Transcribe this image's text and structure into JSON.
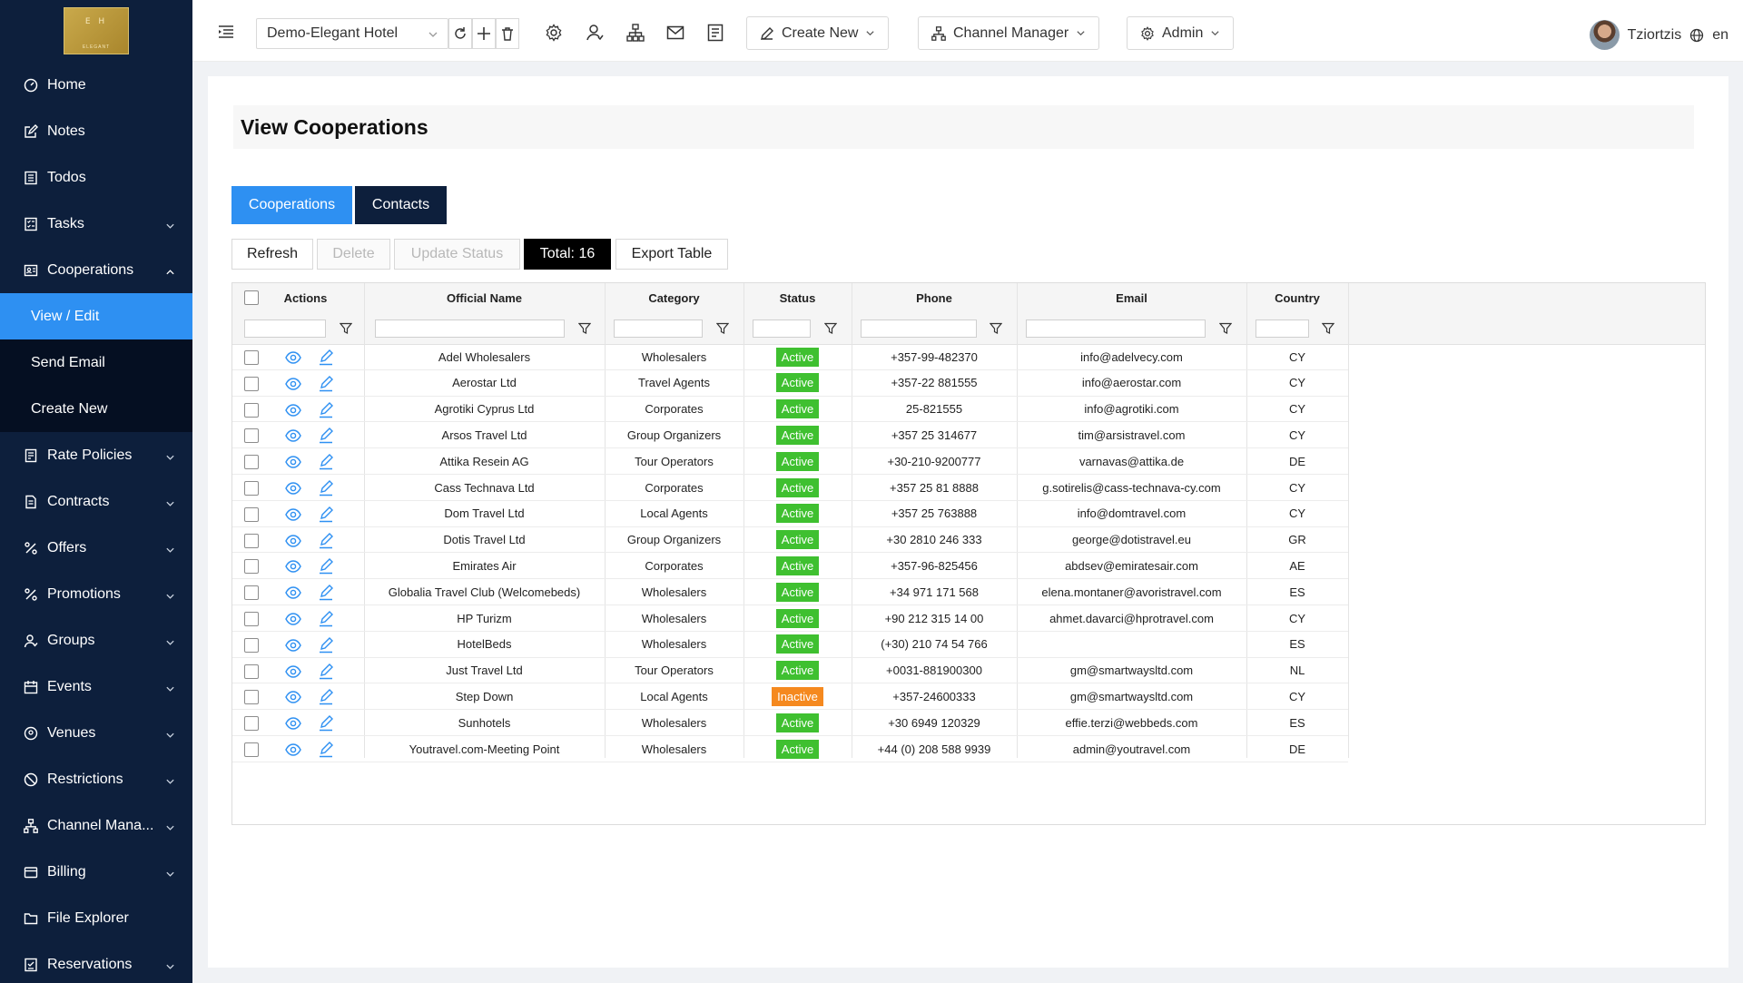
{
  "brand": {
    "logo_text": "E H",
    "logo_sub": "ELEGANT"
  },
  "sidebar": {
    "items": [
      {
        "label": "Home",
        "icon": "dashboard-icon"
      },
      {
        "label": "Notes",
        "icon": "edit-icon"
      },
      {
        "label": "Todos",
        "icon": "list-icon"
      },
      {
        "label": "Tasks",
        "icon": "checklist-icon",
        "expandable": true
      },
      {
        "label": "Cooperations",
        "icon": "handshake-icon",
        "expandable": true,
        "expanded": true
      },
      {
        "label": "Rate Policies",
        "icon": "policy-icon",
        "expandable": true
      },
      {
        "label": "Contracts",
        "icon": "contract-icon",
        "expandable": true
      },
      {
        "label": "Offers",
        "icon": "percent-icon",
        "expandable": true
      },
      {
        "label": "Promotions",
        "icon": "percent-icon",
        "expandable": true
      },
      {
        "label": "Groups",
        "icon": "users-icon",
        "expandable": true
      },
      {
        "label": "Events",
        "icon": "calendar-icon",
        "expandable": true
      },
      {
        "label": "Venues",
        "icon": "location-icon",
        "expandable": true
      },
      {
        "label": "Restrictions",
        "icon": "block-icon",
        "expandable": true
      },
      {
        "label": "Channel Mana...",
        "icon": "network-icon",
        "expandable": true
      },
      {
        "label": "Billing",
        "icon": "wallet-icon",
        "expandable": true
      },
      {
        "label": "File Explorer",
        "icon": "folder-icon"
      },
      {
        "label": "Reservations",
        "icon": "reservation-icon",
        "expandable": true
      }
    ],
    "cooperations_sub": [
      {
        "label": "View / Edit",
        "active": true
      },
      {
        "label": "Send Email"
      },
      {
        "label": "Create New"
      }
    ]
  },
  "topbar": {
    "hotel": "Demo-Elegant Hotel",
    "create_new": "Create New",
    "channel_manager": "Channel Manager",
    "admin": "Admin",
    "user_name": "Tziortzis",
    "language": "en"
  },
  "page": {
    "title": "View Cooperations",
    "tabs": [
      "Cooperations",
      "Contacts"
    ],
    "toolbar": {
      "refresh": "Refresh",
      "delete": "Delete",
      "update_status": "Update Status",
      "total": "Total: 16",
      "export": "Export Table"
    }
  },
  "table": {
    "headers": [
      "Actions",
      "Official Name",
      "Category",
      "Status",
      "Phone",
      "Email",
      "Country"
    ],
    "rows": [
      {
        "name": "Adel Wholesalers",
        "category": "Wholesalers",
        "status": "Active",
        "phone": "+357-99-482370",
        "email": "info@adelvecy.com",
        "country": "CY"
      },
      {
        "name": "Aerostar Ltd",
        "category": "Travel Agents",
        "status": "Active",
        "phone": "+357-22 881555",
        "email": "info@aerostar.com",
        "country": "CY"
      },
      {
        "name": "Agrotiki Cyprus Ltd",
        "category": "Corporates",
        "status": "Active",
        "phone": "25-821555",
        "email": "info@agrotiki.com",
        "country": "CY"
      },
      {
        "name": "Arsos Travel Ltd",
        "category": "Group Organizers",
        "status": "Active",
        "phone": "+357 25 314677",
        "email": "tim@arsistravel.com",
        "country": "CY"
      },
      {
        "name": "Attika Resein AG",
        "category": "Tour Operators",
        "status": "Active",
        "phone": "+30-210-9200777",
        "email": "varnavas@attika.de",
        "country": "DE"
      },
      {
        "name": "Cass Technava Ltd",
        "category": "Corporates",
        "status": "Active",
        "phone": "+357 25 81 8888",
        "email": "g.sotirelis@cass-technava-cy.com",
        "country": "CY"
      },
      {
        "name": "Dom Travel Ltd",
        "category": "Local Agents",
        "status": "Active",
        "phone": "+357 25 763888",
        "email": "info@domtravel.com",
        "country": "CY"
      },
      {
        "name": "Dotis Travel Ltd",
        "category": "Group Organizers",
        "status": "Active",
        "phone": "+30 2810 246 333",
        "email": "george@dotistravel.eu",
        "country": "GR"
      },
      {
        "name": "Emirates Air",
        "category": "Corporates",
        "status": "Active",
        "phone": "+357-96-825456",
        "email": "abdsev@emiratesair.com",
        "country": "AE"
      },
      {
        "name": "Globalia Travel Club (Welcomebeds)",
        "category": "Wholesalers",
        "status": "Active",
        "phone": "+34 971 171 568",
        "email": "elena.montaner@avoristravel.com",
        "country": "ES"
      },
      {
        "name": "HP Turizm",
        "category": "Wholesalers",
        "status": "Active",
        "phone": "+90 212 315 14 00",
        "email": "ahmet.davarci@hprotravel.com",
        "country": "CY"
      },
      {
        "name": "HotelBeds",
        "category": "Wholesalers",
        "status": "Active",
        "phone": "(+30) 210 74 54 766",
        "email": "",
        "country": "ES"
      },
      {
        "name": "Just Travel Ltd",
        "category": "Tour Operators",
        "status": "Active",
        "phone": "+0031-881900300",
        "email": "gm@smartwaysltd.com",
        "country": "NL"
      },
      {
        "name": "Step Down",
        "category": "Local Agents",
        "status": "Inactive",
        "phone": "+357-24600333",
        "email": "gm@smartwaysltd.com",
        "country": "CY"
      },
      {
        "name": "Sunhotels",
        "category": "Wholesalers",
        "status": "Active",
        "phone": "+30 6949 120329",
        "email": "effie.terzi@webbeds.com",
        "country": "ES"
      },
      {
        "name": "Youtravel.com-Meeting Point",
        "category": "Wholesalers",
        "status": "Active",
        "phone": "+44 (0) 208 588 9939",
        "email": "admin@youtravel.com",
        "country": "DE"
      }
    ]
  },
  "colors": {
    "sidebar_bg": "#0d1f3c",
    "accent": "#2e90f2",
    "active_badge": "#3fc030",
    "inactive_badge": "#f5891f"
  }
}
